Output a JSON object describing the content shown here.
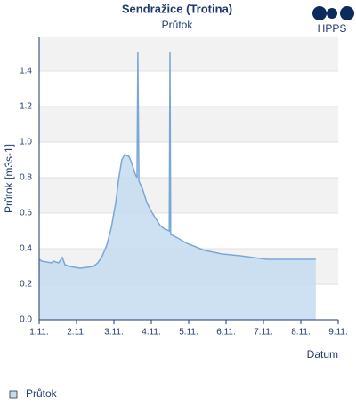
{
  "chart_data": {
    "type": "area",
    "title": "Sendražice (Trotina)",
    "subtitle": "Průtok",
    "x_label": "Datum",
    "y_label": "Průtok [m3s-1]",
    "x": [
      1.0,
      1.07,
      1.33,
      1.38,
      1.52,
      1.62,
      1.69,
      1.81,
      2.1,
      2.45,
      2.57,
      2.69,
      2.81,
      2.93,
      3.05,
      3.12,
      3.21,
      3.29,
      3.4,
      3.48,
      3.57,
      3.62,
      3.64,
      3.67,
      3.76,
      3.88,
      4.0,
      4.12,
      4.24,
      4.36,
      4.48,
      4.5,
      4.52,
      4.71,
      4.95,
      5.19,
      5.43,
      5.9,
      6.38,
      7.1,
      8.4
    ],
    "series": [
      {
        "name": "Průtok",
        "color": "#7aa7d6",
        "fill": "#c5dcf0",
        "values": [
          0.34,
          0.33,
          0.32,
          0.33,
          0.32,
          0.35,
          0.31,
          0.3,
          0.29,
          0.3,
          0.32,
          0.36,
          0.42,
          0.52,
          0.66,
          0.78,
          0.9,
          0.93,
          0.92,
          0.88,
          0.82,
          0.8,
          1.51,
          0.78,
          0.74,
          0.66,
          0.61,
          0.57,
          0.53,
          0.51,
          0.5,
          1.51,
          0.48,
          0.46,
          0.43,
          0.41,
          0.39,
          0.37,
          0.36,
          0.34,
          0.34
        ]
      }
    ],
    "xlim": [
      1,
      9
    ],
    "ylim": [
      0,
      1.59
    ],
    "xticks": [
      {
        "value": 1,
        "label": "1.11."
      },
      {
        "value": 2,
        "label": "2.11."
      },
      {
        "value": 3,
        "label": "3.11."
      },
      {
        "value": 4,
        "label": "4.11."
      },
      {
        "value": 5,
        "label": "5.11."
      },
      {
        "value": 6,
        "label": "6.11."
      },
      {
        "value": 7,
        "label": "7.11."
      },
      {
        "value": 8,
        "label": "8.11."
      },
      {
        "value": 9,
        "label": "9.11."
      }
    ],
    "yticks": [
      {
        "value": 0,
        "label": "0.0"
      },
      0.2,
      0.4,
      0.6,
      0.8,
      {
        "value": 1,
        "label": "1.0"
      },
      1.2,
      1.4
    ],
    "grid": true,
    "alternate_bands": true,
    "legend": "bottom-left"
  },
  "logo": "HPPS"
}
